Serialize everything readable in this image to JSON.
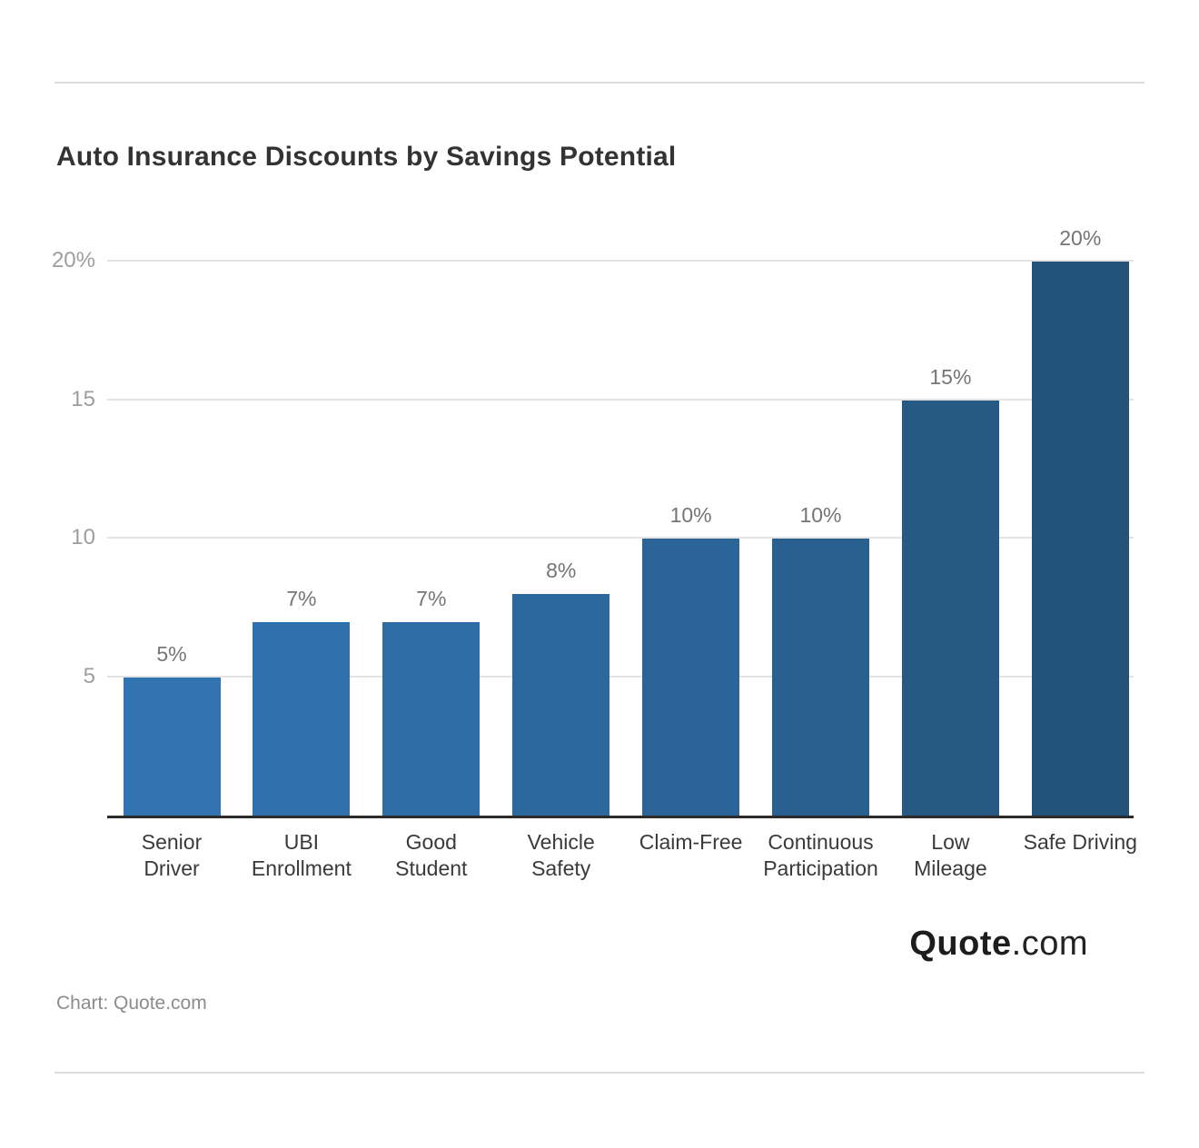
{
  "header": {
    "title": "Auto Insurance Discounts by Savings Potential"
  },
  "footer": {
    "logo_bold": "Quote",
    "logo_rest": ".com",
    "source": "Chart: Quote.com"
  },
  "chart_data": {
    "type": "bar",
    "title": "Auto Insurance Discounts by Savings Potential",
    "xlabel": "",
    "ylabel": "",
    "categories": [
      "Senior Driver",
      "UBI Enrollment",
      "Good Student",
      "Vehicle Safety",
      "Claim-Free",
      "Continuous Participation",
      "Low Mileage",
      "Safe Driving"
    ],
    "category_lines": [
      [
        "Senior",
        "Driver"
      ],
      [
        "UBI",
        "Enrollment"
      ],
      [
        "Good",
        "Student"
      ],
      [
        "Vehicle",
        "Safety"
      ],
      [
        "Claim-Free"
      ],
      [
        "Continuous",
        "Participation"
      ],
      [
        "Low",
        "Mileage"
      ],
      [
        "Safe Driving"
      ]
    ],
    "values": [
      5,
      7,
      7,
      8,
      10,
      10,
      15,
      20
    ],
    "value_labels": [
      "5%",
      "7%",
      "7%",
      "8%",
      "10%",
      "10%",
      "15%",
      "20%"
    ],
    "y_ticks": [
      {
        "value": 5,
        "label": "5"
      },
      {
        "value": 10,
        "label": "10"
      },
      {
        "value": 15,
        "label": "15"
      },
      {
        "value": 20,
        "label": "20%"
      }
    ],
    "ylim": [
      0,
      21.2
    ],
    "grid": true,
    "legend": "none",
    "bar_colors": [
      "#3274B2",
      "#3070AC",
      "#2E6DA6",
      "#2C689D",
      "#2B6496",
      "#2A6090",
      "#265A84",
      "#245379"
    ],
    "colors": {
      "axis_line": "#2b2b2b",
      "gridline": "#e3e3e3",
      "y_tick_label": "#9e9e9e",
      "value_label": "#757575",
      "category_label": "#3a3a3a",
      "title": "#333333",
      "divider": "#dcdcdc",
      "logo": "#1d1d1d",
      "source": "#8c8c8c"
    }
  }
}
